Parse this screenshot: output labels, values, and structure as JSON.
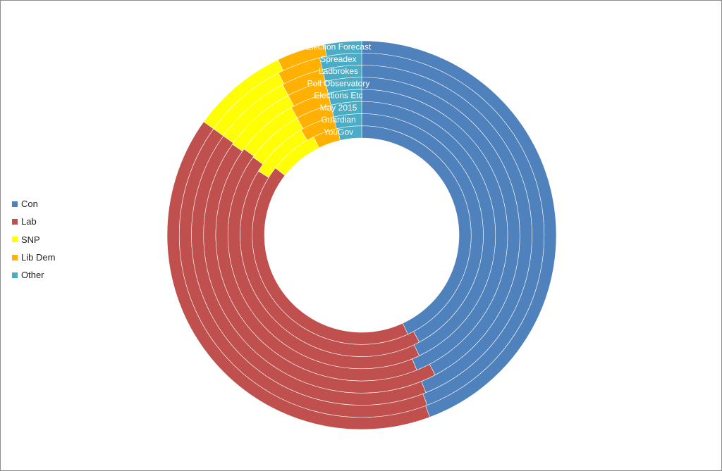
{
  "chart_data": {
    "type": "donut",
    "title": "",
    "legend_position": "left",
    "parties": [
      {
        "name": "Con",
        "color": "#4F81BD"
      },
      {
        "name": "Lab",
        "color": "#C0504D"
      },
      {
        "name": "SNP",
        "color": "#FFFF00"
      },
      {
        "name": "Lib Dem",
        "color": "#FFB000"
      },
      {
        "name": "Other",
        "color": "#4BACC6"
      }
    ],
    "series": [
      {
        "name": "Election Forecast",
        "values": [
          288,
          264,
          52,
          26,
          20
        ]
      },
      {
        "name": "Spreadex",
        "values": [
          287,
          265,
          49,
          25,
          24
        ]
      },
      {
        "name": "Ladbrokes",
        "values": [
          285,
          267,
          48,
          26,
          24
        ]
      },
      {
        "name": "Poll Observatory",
        "values": [
          275,
          276,
          49,
          26,
          24
        ]
      },
      {
        "name": "Elections Etc",
        "values": [
          285,
          268,
          45,
          28,
          24
        ]
      },
      {
        "name": "May 2015",
        "values": [
          279,
          273,
          46,
          28,
          24
        ]
      },
      {
        "name": "Guardian",
        "values": [
          274,
          271,
          51,
          30,
          24
        ]
      },
      {
        "name": "YouGov",
        "values": [
          280,
          276,
          47,
          24,
          23
        ]
      }
    ]
  }
}
